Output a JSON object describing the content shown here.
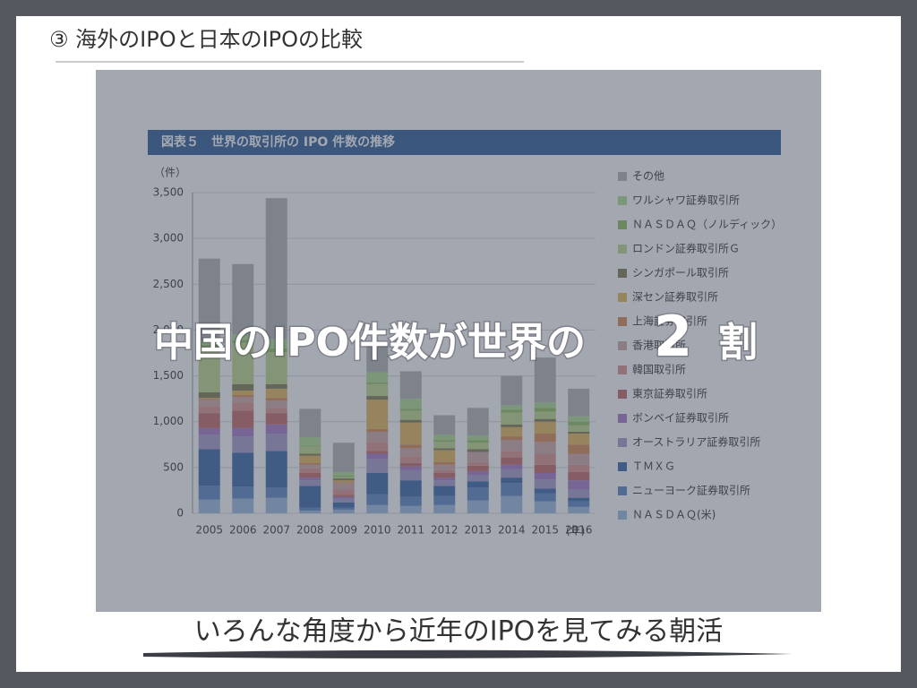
{
  "slide_title": "③ 海外のIPOと日本のIPOの比較",
  "headline": [
    "中国のIPO件数が世界の",
    "2",
    "割"
  ],
  "caption": "いろんな角度から近年のIPOを見てみる朝活",
  "chart_data": {
    "type": "stacked_bar",
    "title": "図表５　世界の取引所の IPO 件数の推移",
    "y_label": "（件）",
    "x_label": "(年)",
    "categories": [
      "2005",
      "2006",
      "2007",
      "2008",
      "2009",
      "2010",
      "2011",
      "2012",
      "2013",
      "2014",
      "2015",
      "2016"
    ],
    "ylim": [
      0,
      3500
    ],
    "yticks": [
      0,
      {
        "value": 500,
        "label": "500"
      },
      {
        "value": 1000,
        "label": "1,000"
      },
      {
        "value": 1500,
        "label": "1,500"
      },
      {
        "value": 2000,
        "label": "2,000"
      },
      {
        "value": 2500,
        "label": "2,500"
      },
      {
        "value": 3000,
        "label": "3,000"
      },
      {
        "value": 3500,
        "label": "3,500"
      }
    ],
    "grid": true,
    "legend": "right",
    "series": [
      {
        "name": "ＮＡＳＤＡＱ(米)",
        "color": "#9cbde0",
        "values": [
          150,
          160,
          170,
          30,
          40,
          90,
          80,
          90,
          140,
          190,
          130,
          70
        ]
      },
      {
        "name": "ニューヨーク証券取引所",
        "color": "#5b86c4",
        "values": [
          150,
          130,
          110,
          30,
          20,
          120,
          100,
          100,
          140,
          140,
          90,
          60
        ]
      },
      {
        "name": "ＴＭＸＧ",
        "color": "#3b68a6",
        "values": [
          400,
          370,
          400,
          240,
          60,
          230,
          180,
          110,
          70,
          60,
          50,
          40
        ]
      },
      {
        "name": "オーストラリア証券取引所",
        "color": "#a79ccc",
        "values": [
          160,
          180,
          190,
          60,
          40,
          150,
          110,
          60,
          70,
          90,
          100,
          90
        ]
      },
      {
        "name": "ボンベイ証券取引所",
        "color": "#a77cc8",
        "values": [
          70,
          90,
          100,
          30,
          20,
          60,
          40,
          30,
          40,
          50,
          70,
          100
        ]
      },
      {
        "name": "東京証券取引所",
        "color": "#c46a66",
        "values": [
          160,
          190,
          120,
          50,
          20,
          30,
          40,
          50,
          60,
          80,
          90,
          90
        ]
      },
      {
        "name": "韓国取引所",
        "color": "#dc9490",
        "values": [
          80,
          90,
          60,
          50,
          60,
          100,
          70,
          30,
          40,
          70,
          120,
          80
        ]
      },
      {
        "name": "香港取引所",
        "color": "#d0aaa6",
        "values": [
          70,
          60,
          80,
          40,
          70,
          110,
          90,
          60,
          110,
          120,
          130,
          120
        ]
      },
      {
        "name": "上海証券取引所",
        "color": "#d88a52",
        "values": [
          10,
          20,
          30,
          20,
          10,
          30,
          40,
          30,
          0,
          40,
          90,
          100
        ]
      },
      {
        "name": "深セン証券取引所",
        "color": "#e4b85a",
        "values": [
          10,
          50,
          100,
          80,
          20,
          320,
          240,
          130,
          0,
          100,
          130,
          120
        ]
      },
      {
        "name": "シンガポール取引所",
        "color": "#7e7c50",
        "values": [
          60,
          70,
          50,
          20,
          20,
          40,
          30,
          20,
          30,
          30,
          30,
          20
        ]
      },
      {
        "name": "ロンドン証券取引所Ｇ",
        "color": "#c0d88c",
        "values": [
          500,
          450,
          350,
          80,
          20,
          130,
          100,
          70,
          70,
          130,
          80,
          70
        ]
      },
      {
        "name": "ＮＡＳＤＡＱ（ノルディック）",
        "color": "#8fc060",
        "values": [
          20,
          30,
          40,
          10,
          10,
          20,
          20,
          20,
          30,
          30,
          40,
          40
        ]
      },
      {
        "name": "ワルシャワ証券取引所",
        "color": "#aedc90",
        "values": [
          40,
          60,
          100,
          90,
          40,
          110,
          110,
          60,
          50,
          50,
          60,
          60
        ]
      },
      {
        "name": "その他",
        "color": "#b4b4b4",
        "values": [
          900,
          770,
          1540,
          310,
          320,
          300,
          300,
          210,
          300,
          320,
          490,
          300
        ]
      }
    ]
  }
}
